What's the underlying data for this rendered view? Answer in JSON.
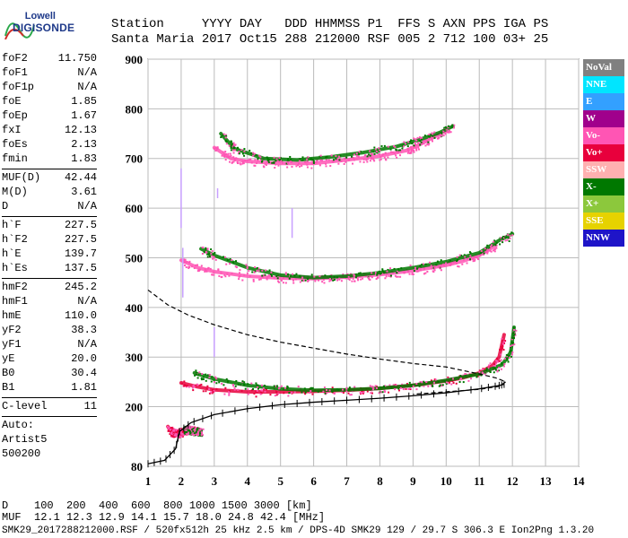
{
  "logo": {
    "line1": "Lowell",
    "line2": "DIGISONDE"
  },
  "header": {
    "row1": "Station     YYYY DAY   DDD HHMMSS P1  FFS S AXN PPS IGA PS",
    "row2": "Santa Maria 2017 Oct15 288 212000 RSF 005 2 712 100 03+ 25"
  },
  "params": [
    {
      "k": "foF2",
      "v": "11.750"
    },
    {
      "k": "foF1",
      "v": "N/A"
    },
    {
      "k": "foF1p",
      "v": "N/A"
    },
    {
      "k": "foE",
      "v": "1.85"
    },
    {
      "k": "foEp",
      "v": "1.67"
    },
    {
      "k": "fxI",
      "v": "12.13"
    },
    {
      "k": "foEs",
      "v": "2.13"
    },
    {
      "k": "fmin",
      "v": "1.83"
    },
    {
      "sep": true
    },
    {
      "k": "MUF(D)",
      "v": "42.44"
    },
    {
      "k": "M(D)",
      "v": "3.61"
    },
    {
      "k": "D",
      "v": "N/A"
    },
    {
      "sep": true
    },
    {
      "k": "h`F",
      "v": "227.5"
    },
    {
      "k": "h`F2",
      "v": "227.5"
    },
    {
      "k": "h`E",
      "v": "139.7"
    },
    {
      "k": "h`Es",
      "v": "137.5"
    },
    {
      "sep": true
    },
    {
      "k": "hmF2",
      "v": "245.2"
    },
    {
      "k": "hmF1",
      "v": "N/A"
    },
    {
      "k": "hmE",
      "v": "110.0"
    },
    {
      "k": "yF2",
      "v": "38.3"
    },
    {
      "k": "yF1",
      "v": "N/A"
    },
    {
      "k": "yE",
      "v": "20.0"
    },
    {
      "k": "B0",
      "v": "30.4"
    },
    {
      "k": "B1",
      "v": "1.81"
    },
    {
      "sep": true
    },
    {
      "k": "C-level",
      "v": "11"
    },
    {
      "sep": true
    },
    {
      "k": "Auto:",
      "v": ""
    },
    {
      "k": "Artist5",
      "v": ""
    },
    {
      "k": "500200",
      "v": ""
    }
  ],
  "legend": [
    {
      "label": "NoVal",
      "color": "#808080"
    },
    {
      "label": "NNE",
      "color": "#00e5ff"
    },
    {
      "label": "E",
      "color": "#33a0ff"
    },
    {
      "label": "W",
      "color": "#a0008c"
    },
    {
      "label": "Vo-",
      "color": "#ff55b4"
    },
    {
      "label": "Vo+",
      "color": "#e8003c"
    },
    {
      "label": "SSW",
      "color": "#ffb0b0"
    },
    {
      "label": "X-",
      "color": "#007800"
    },
    {
      "label": "X+",
      "color": "#8cc83c"
    },
    {
      "label": "SSE",
      "color": "#e6d200"
    },
    {
      "label": "NNW",
      "color": "#1e14c8"
    }
  ],
  "footer": {
    "row1": "D    100  200  400  600  800 1000 1500 3000 [km]",
    "row2": "MUF  12.1 12.3 12.9 14.1 15.7 18.0 24.8 42.4 [MHz]",
    "row3": "SMK29_2017288212000.RSF / 520fx512h 25 kHz 2.5 km / DPS-4D SMK29 129 / 29.7 S 306.3 E Ion2Png 1.3.20"
  },
  "chart_data": {
    "type": "scatter",
    "xlim": [
      1,
      14
    ],
    "ylim": [
      80,
      900
    ],
    "xticks": [
      1,
      2,
      3,
      4,
      5,
      6,
      7,
      8,
      9,
      10,
      11,
      12,
      13,
      14
    ],
    "yticks": [
      80,
      200,
      300,
      400,
      500,
      600,
      700,
      800,
      900
    ],
    "grid": true,
    "traces": [
      {
        "name": "O virtual 1st hop",
        "color": "#e8003c",
        "points": [
          [
            2.0,
            248
          ],
          [
            2.5,
            240
          ],
          [
            3,
            234
          ],
          [
            4,
            230
          ],
          [
            5,
            230
          ],
          [
            6,
            231
          ],
          [
            7,
            233
          ],
          [
            8,
            237
          ],
          [
            9,
            243
          ],
          [
            10,
            252
          ],
          [
            10.5,
            258
          ],
          [
            11,
            268
          ],
          [
            11.4,
            283
          ],
          [
            11.6,
            300
          ],
          [
            11.75,
            345
          ]
        ]
      },
      {
        "name": "X virtual 1st hop",
        "color": "#007800",
        "points": [
          [
            2.4,
            268
          ],
          [
            3,
            256
          ],
          [
            4,
            243
          ],
          [
            5,
            236
          ],
          [
            6,
            233
          ],
          [
            7,
            234
          ],
          [
            8,
            237
          ],
          [
            9,
            243
          ],
          [
            10,
            253
          ],
          [
            11,
            266
          ],
          [
            11.7,
            285
          ],
          [
            11.95,
            310
          ],
          [
            12.05,
            360
          ]
        ]
      },
      {
        "name": "O 2nd hop",
        "color": "#ff55b4",
        "points": [
          [
            2.0,
            495
          ],
          [
            2.5,
            480
          ],
          [
            3,
            472
          ],
          [
            4,
            463
          ],
          [
            5,
            459
          ],
          [
            6,
            458
          ],
          [
            7,
            461
          ],
          [
            8,
            466
          ],
          [
            9,
            474
          ],
          [
            10,
            485
          ],
          [
            10.5,
            493
          ],
          [
            11,
            505
          ],
          [
            11.5,
            525
          ]
        ]
      },
      {
        "name": "X 2nd hop",
        "color": "#007800",
        "points": [
          [
            2.6,
            518
          ],
          [
            3,
            505
          ],
          [
            4,
            480
          ],
          [
            5,
            465
          ],
          [
            6,
            460
          ],
          [
            7,
            463
          ],
          [
            8,
            470
          ],
          [
            9,
            480
          ],
          [
            10,
            492
          ],
          [
            11,
            510
          ],
          [
            11.6,
            535
          ],
          [
            12,
            548
          ]
        ]
      },
      {
        "name": "O 3rd hop",
        "color": "#ff55b4",
        "points": [
          [
            3.0,
            722
          ],
          [
            3.5,
            700
          ],
          [
            4,
            694
          ],
          [
            5,
            690
          ],
          [
            6,
            690
          ],
          [
            7,
            697
          ],
          [
            8,
            705
          ],
          [
            8.8,
            716
          ],
          [
            9.2,
            728
          ],
          [
            9.6,
            742
          ],
          [
            10,
            756
          ]
        ]
      },
      {
        "name": "X 3rd hop",
        "color": "#007800",
        "points": [
          [
            3.2,
            750
          ],
          [
            3.6,
            720
          ],
          [
            4.5,
            700
          ],
          [
            5.5,
            697
          ],
          [
            6.5,
            703
          ],
          [
            7.5,
            712
          ],
          [
            8.5,
            724
          ],
          [
            9.2,
            738
          ],
          [
            9.8,
            752
          ],
          [
            10.2,
            765
          ]
        ]
      },
      {
        "name": "Es",
        "color": "#e8003c",
        "points": [
          [
            1.6,
            160
          ],
          [
            1.7,
            150
          ],
          [
            1.8,
            148
          ],
          [
            1.9,
            147
          ],
          [
            2.0,
            150
          ],
          [
            2.2,
            155
          ],
          [
            2.5,
            152
          ]
        ]
      },
      {
        "name": "Es X",
        "color": "#007800",
        "points": [
          [
            2.1,
            156
          ],
          [
            2.3,
            153
          ],
          [
            2.6,
            150
          ]
        ]
      }
    ],
    "true_height_profile": {
      "color": "#000000",
      "points": [
        [
          1.0,
          85
        ],
        [
          1.5,
          92
        ],
        [
          1.83,
          115
        ],
        [
          1.95,
          150
        ],
        [
          2.3,
          168
        ],
        [
          3,
          184
        ],
        [
          4,
          196
        ],
        [
          5,
          204
        ],
        [
          6,
          209
        ],
        [
          7,
          213
        ],
        [
          8,
          217
        ],
        [
          9,
          222
        ],
        [
          10,
          228
        ],
        [
          11,
          236
        ],
        [
          11.55,
          242
        ],
        [
          11.75,
          245
        ]
      ]
    },
    "model_dashed": {
      "color": "#000000",
      "points": [
        [
          1.0,
          435
        ],
        [
          1.6,
          405
        ],
        [
          2.2,
          385
        ],
        [
          3,
          365
        ],
        [
          4,
          345
        ],
        [
          5,
          330
        ],
        [
          6,
          318
        ],
        [
          7,
          306
        ],
        [
          8,
          296
        ],
        [
          9,
          287
        ],
        [
          10,
          280
        ],
        [
          11,
          266
        ],
        [
          11.5,
          258
        ],
        [
          11.8,
          250
        ],
        [
          11.6,
          241
        ],
        [
          11.0,
          235
        ],
        [
          10.0,
          230
        ],
        [
          9,
          225
        ]
      ]
    }
  }
}
